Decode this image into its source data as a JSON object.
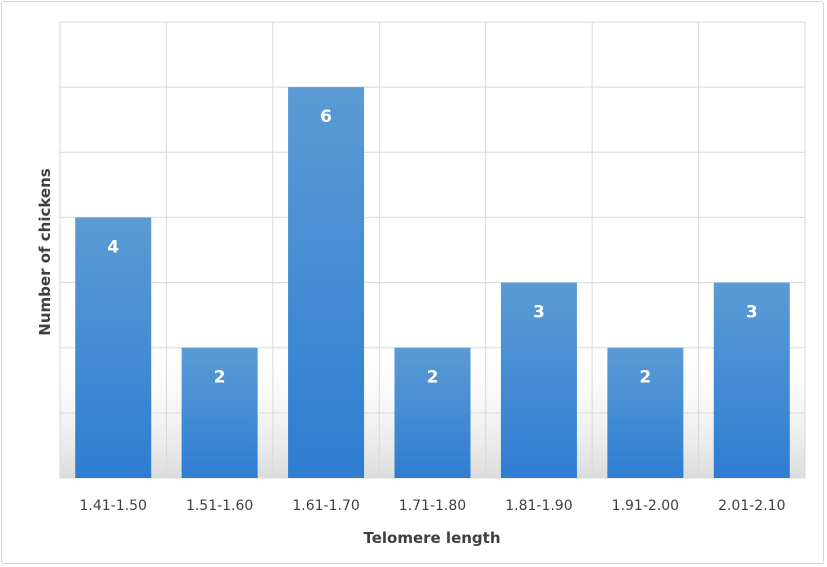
{
  "chart_data": {
    "type": "bar",
    "title": "",
    "xlabel": "Telomere length",
    "ylabel": "Number of chickens",
    "categories": [
      "1.41-1.50",
      "1.51-1.60",
      "1.61-1.70",
      "1.71-1.80",
      "1.81-1.90",
      "1.91-2.00",
      "2.01-2.10"
    ],
    "values": [
      4,
      2,
      6,
      2,
      3,
      2,
      3
    ],
    "ylim": [
      0,
      7
    ],
    "grid": true,
    "legend": "none",
    "colors": {
      "bar_top": "#5b9bd5",
      "bar_bottom": "#2e7dd1",
      "grid": "#d9d9d9",
      "text": "#404040"
    }
  }
}
